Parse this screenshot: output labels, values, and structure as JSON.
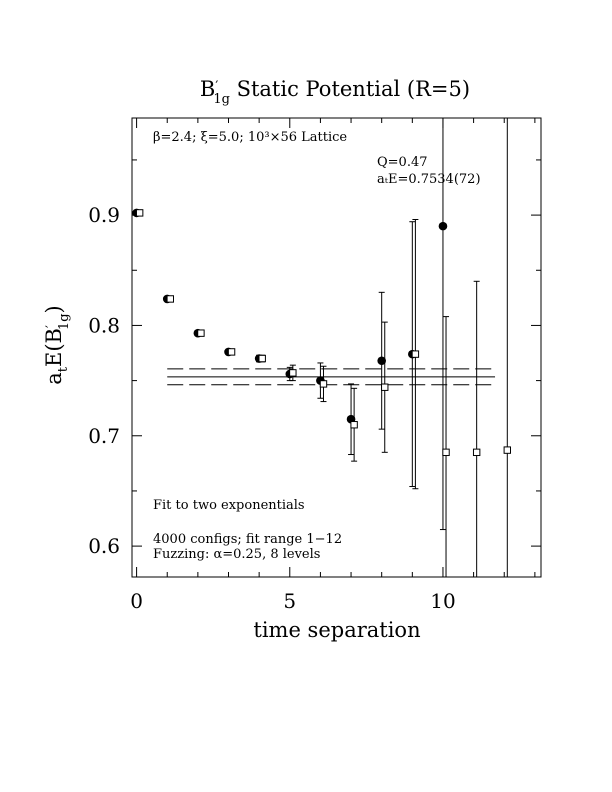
{
  "chart_data": {
    "type": "scatter",
    "title": {
      "prefix": "B",
      "prime": "′",
      "sub": "1g",
      "rest": " Static Potential (R=5)"
    },
    "xlabel": "time separation",
    "ylabel": {
      "a": "a",
      "t": "t",
      "E": "E(B",
      "prime": "′",
      "sub": "1g",
      "close": ")"
    },
    "xlim": [
      -0.15,
      13.2
    ],
    "ylim": [
      0.572,
      0.988
    ],
    "xticks": [
      0,
      5,
      10
    ],
    "xtick_labels": [
      "0",
      "5",
      "10"
    ],
    "yticks": [
      0.6,
      0.7,
      0.8,
      0.9
    ],
    "ytick_labels": [
      "0.6",
      "0.7",
      "0.8",
      "0.9"
    ],
    "annotations": {
      "lattice": "β=2.4; ξ=5.0; 10³×56 Lattice",
      "q": "Q=0.47",
      "energy": "aₜE=0.7534(72)",
      "fit": "Fit to two exponentials",
      "configs": "4000 configs; fit range 1−12",
      "fuzzing": "Fuzzing: α=0.25, 8 levels"
    },
    "series": [
      {
        "marker": "filled-circle",
        "points": [
          {
            "x": 0,
            "y": 0.902,
            "err": 0.002
          },
          {
            "x": 1,
            "y": 0.824,
            "err": 0.002
          },
          {
            "x": 2,
            "y": 0.793,
            "err": 0.002
          },
          {
            "x": 3,
            "y": 0.776,
            "err": 0.002
          },
          {
            "x": 4,
            "y": 0.77,
            "err": 0.003
          },
          {
            "x": 5,
            "y": 0.756,
            "err": 0.006
          },
          {
            "x": 6,
            "y": 0.75,
            "err": 0.016
          },
          {
            "x": 7,
            "y": 0.715,
            "err": 0.032
          },
          {
            "x": 8,
            "y": 0.768,
            "err": 0.062
          },
          {
            "x": 9,
            "y": 0.774,
            "err": 0.12
          },
          {
            "x": 10,
            "y": 0.89,
            "err": 0.275
          }
        ]
      },
      {
        "marker": "open-square",
        "points": [
          {
            "x": 0.1,
            "y": 0.902,
            "err": 0.002
          },
          {
            "x": 1.1,
            "y": 0.824,
            "err": 0.002
          },
          {
            "x": 2.1,
            "y": 0.793,
            "err": 0.002
          },
          {
            "x": 3.1,
            "y": 0.776,
            "err": 0.002
          },
          {
            "x": 4.1,
            "y": 0.77,
            "err": 0.003
          },
          {
            "x": 5.1,
            "y": 0.757,
            "err": 0.007
          },
          {
            "x": 6.1,
            "y": 0.747,
            "err": 0.016
          },
          {
            "x": 7.1,
            "y": 0.71,
            "err": 0.033
          },
          {
            "x": 8.1,
            "y": 0.744,
            "err": 0.059
          },
          {
            "x": 9.1,
            "y": 0.774,
            "err": 0.122
          },
          {
            "x": 10.1,
            "y": 0.685,
            "err": 0.123
          },
          {
            "x": 11.1,
            "y": 0.685,
            "err": 0.155
          },
          {
            "x": 12.1,
            "y": 0.687,
            "err": 0.4
          }
        ]
      }
    ],
    "fit_band": {
      "central": 0.7534,
      "error": 0.0072,
      "x_range": [
        1,
        11.7
      ]
    }
  }
}
